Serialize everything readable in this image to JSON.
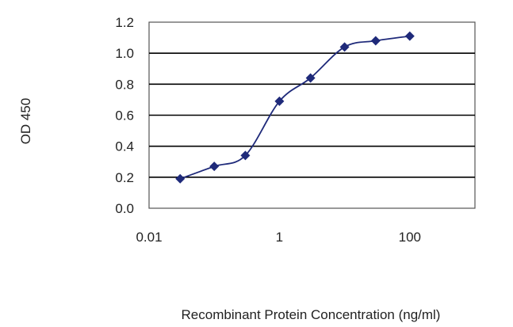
{
  "chart_data": {
    "type": "line",
    "title": "",
    "xlabel": "Recombinant Protein Concentration (ng/ml)",
    "ylabel": "OD 450",
    "x_scale": "log",
    "xlim": [
      0.01,
      1000
    ],
    "ylim": [
      0,
      1.2
    ],
    "x_ticks": [
      {
        "value": 0.01,
        "label": "0.01"
      },
      {
        "value": 1,
        "label": "1"
      },
      {
        "value": 100,
        "label": "100"
      }
    ],
    "y_ticks": [
      {
        "value": 0.0,
        "label": "0.0"
      },
      {
        "value": 0.2,
        "label": "0.2"
      },
      {
        "value": 0.4,
        "label": "0.4"
      },
      {
        "value": 0.6,
        "label": "0.6"
      },
      {
        "value": 0.8,
        "label": "0.8"
      },
      {
        "value": 1.0,
        "label": "1.0"
      },
      {
        "value": 1.2,
        "label": "1.2"
      }
    ],
    "grid": "horizontal",
    "legend": "none",
    "series": [
      {
        "x": [
          0.03,
          0.1,
          0.3,
          1,
          3,
          10,
          30,
          100
        ],
        "y": [
          0.19,
          0.27,
          0.34,
          0.69,
          0.84,
          1.04,
          1.08,
          1.11
        ],
        "color": "#1f2a7a",
        "marker": "diamond"
      }
    ]
  }
}
